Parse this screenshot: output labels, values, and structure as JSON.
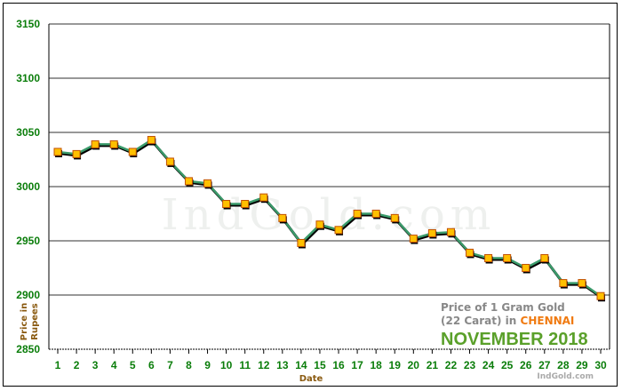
{
  "chart_data": {
    "type": "line",
    "title_lines": [
      "Price of 1 Gram Gold",
      "(22 Carat) in ",
      "CHENNAI",
      "NOVEMBER 2018"
    ],
    "xlabel": "Date",
    "ylabel_lines": [
      "Price in",
      "Rupees"
    ],
    "watermark": "IndGold.com",
    "credit": "IndGold.com",
    "ylim": [
      2850,
      3150
    ],
    "yticks": [
      2850,
      2900,
      2950,
      3000,
      3050,
      3100,
      3150
    ],
    "grid": true,
    "x": [
      1,
      2,
      3,
      4,
      5,
      6,
      7,
      8,
      9,
      10,
      11,
      12,
      13,
      14,
      15,
      16,
      17,
      18,
      19,
      20,
      21,
      22,
      23,
      24,
      25,
      26,
      27,
      28,
      29,
      30
    ],
    "values": [
      3032,
      3030,
      3039,
      3039,
      3032,
      3043,
      3023,
      3005,
      3003,
      2984,
      2984,
      2990,
      2971,
      2948,
      2965,
      2960,
      2975,
      2975,
      2971,
      2952,
      2957,
      2958,
      2939,
      2934,
      2934,
      2925,
      2934,
      2911,
      2911,
      2899
    ],
    "colors": {
      "line": "#3a9a6a",
      "marker": "#ffc000",
      "marker_border": "#c05000",
      "ytick": "#0a7d0a",
      "city": "#f07a10",
      "month": "#5aa02a"
    }
  }
}
